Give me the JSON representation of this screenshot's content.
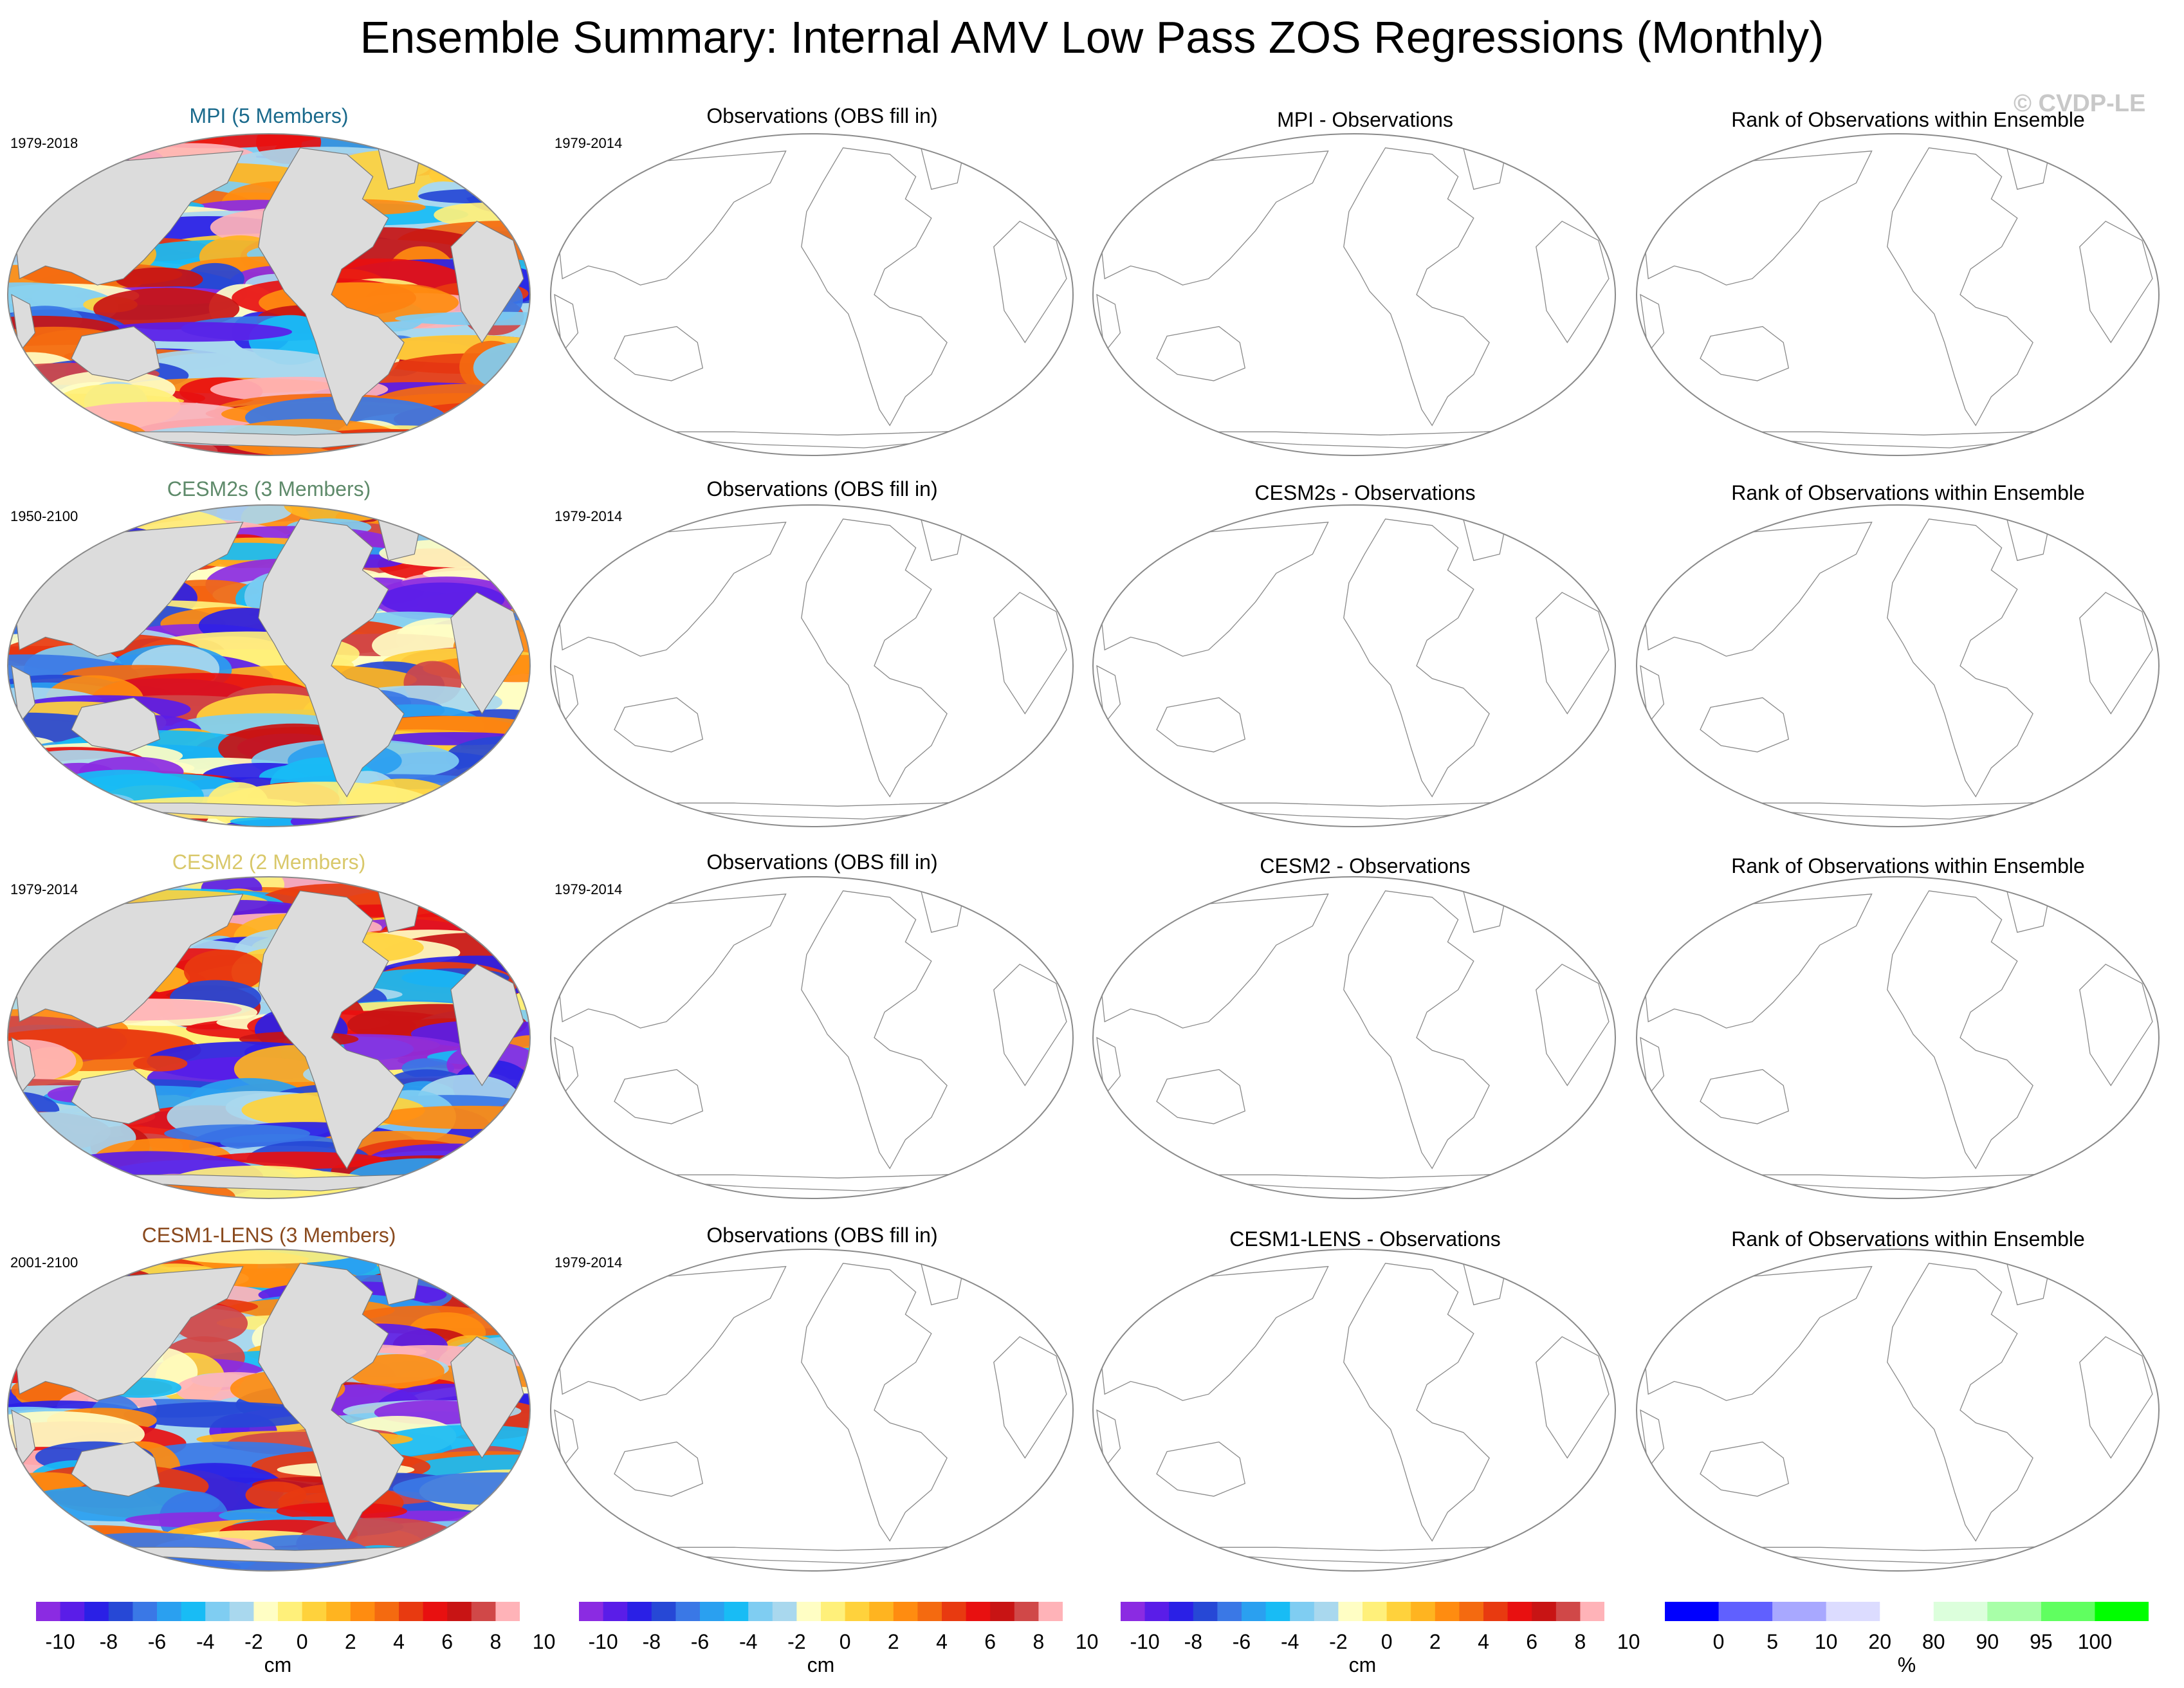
{
  "title": "Ensemble Summary: Internal AMV Low Pass ZOS Regressions (Monthly)",
  "copyright": "© CVDP-LE",
  "rows": [
    {
      "model_title": "MPI (5 Members)",
      "model_color": "#1a6a8c",
      "period": "1979-2018",
      "obs_title": "Observations (OBS fill in)",
      "obs_period": "1979-2014",
      "diff_title": "MPI - Observations",
      "rank_title": "Rank of Observations within Ensemble"
    },
    {
      "model_title": "CESM2s (3 Members)",
      "model_color": "#5e8a6a",
      "period": "1950-2100",
      "obs_title": "Observations (OBS fill in)",
      "obs_period": "1979-2014",
      "diff_title": "CESM2s - Observations",
      "rank_title": "Rank of Observations within Ensemble"
    },
    {
      "model_title": "CESM2 (2 Members)",
      "model_color": "#d9c86a",
      "period": "1979-2014",
      "obs_title": "Observations (OBS fill in)",
      "obs_period": "1979-2014",
      "diff_title": "CESM2 - Observations",
      "rank_title": "Rank of Observations within Ensemble"
    },
    {
      "model_title": "CESM1-LENS (3 Members)",
      "model_color": "#8a4a1e",
      "period": "2001-2100",
      "obs_title": "Observations (OBS fill in)",
      "obs_period": "1979-2014",
      "diff_title": "CESM1-LENS - Observations",
      "rank_title": "Rank of Observations within Ensemble"
    }
  ],
  "colorbar_cm": {
    "unit": "cm",
    "labels": [
      "-10",
      "-8",
      "-6",
      "-4",
      "-2",
      "0",
      "2",
      "4",
      "6",
      "8",
      "10"
    ],
    "colors": [
      "#8b2be2",
      "#5a1de8",
      "#2a20e6",
      "#2648d6",
      "#3a78e6",
      "#2aa0f0",
      "#18bcf5",
      "#7fcdf2",
      "#a9d8ee",
      "#fffec4",
      "#fff07a",
      "#ffd23c",
      "#ffb420",
      "#ff8c10",
      "#f46a10",
      "#e83a10",
      "#e81010",
      "#c81414",
      "#d04848",
      "#ffb3b8"
    ]
  },
  "colorbar_pct": {
    "unit": "%",
    "labels": [
      "0",
      "5",
      "10",
      "20",
      "80",
      "90",
      "95",
      "100"
    ],
    "colors": [
      "#0000ff",
      "#6060ff",
      "#a8a8ff",
      "#dcdcff",
      "#ffffff",
      "#dcffdc",
      "#a8ffa8",
      "#60ff60",
      "#00ff00"
    ]
  }
}
